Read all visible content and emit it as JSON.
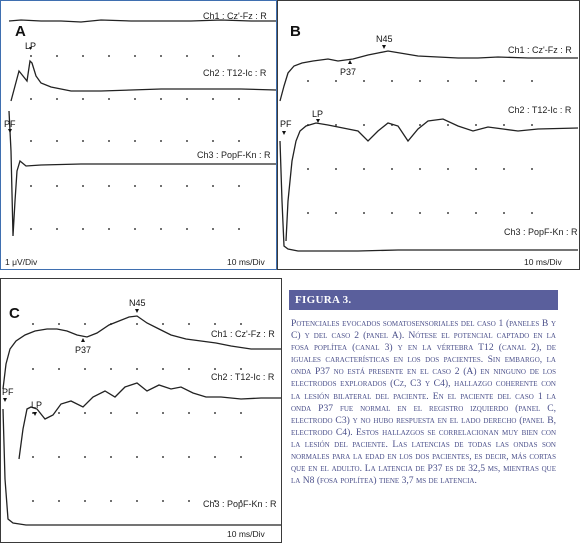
{
  "panels": {
    "A": {
      "label": "A",
      "ch1": "Ch1 : Cz'-Fz : R",
      "ch2": "Ch2 : T12-Ic : R",
      "ch3": "Ch3 : PopF-Kn : R",
      "marker_lp": "LP",
      "marker_pf": "PF",
      "scale_amp": "1 μV/Div",
      "scale_time": "10 ms/Div"
    },
    "B": {
      "label": "B",
      "ch1": "Ch1 : Cz'-Fz : R",
      "ch2": "Ch2 : T12-Ic : R",
      "ch3": "Ch3 : PopF-Kn : R",
      "marker_n45": "N45",
      "marker_p37": "P37",
      "marker_lp": "LP",
      "marker_pf": "PF",
      "scale_time": "10 ms/Div"
    },
    "C": {
      "label": "C",
      "ch1": "Ch1 : Cz'-Fz : R",
      "ch2": "Ch2 : T12-Ic : R",
      "ch3": "Ch3 : PopF-Kn : R",
      "marker_n45": "N45",
      "marker_p37": "P37",
      "marker_lp": "LP",
      "marker_pf": "PF",
      "scale_time": "10 ms/Div"
    }
  },
  "caption": {
    "title": "FIGURA 3.",
    "text": "Potenciales evocados somatosensoriales del caso 1 (paneles B y C) y del caso 2 (panel A). Nótese el potencial captado en la fosa poplítea (canal 3) y en la vértebra T12 (canal 2), de iguales características en los dos pacientes. Sin embargo, la onda P37 no está presente en el caso 2 (A) en ninguno de los electrodos explorados (Cz, C3 y C4), hallazgo coherente con la lesión bilateral del paciente. En el paciente del caso 1 la onda P37 fue normal en el registro izquierdo (panel C, electrodo C3) y no hubo respuesta en el lado derecho (panel B, electrodo C4). Estos hallazgos se correlacionan muy bien con la lesión del paciente. Las latencias de todas las ondas son normales para la edad en los dos pacientes, es decir, más cortas que en el adulto. La latencia de P37 es de 32,5 ms, mientras que la N8 (fosa poplítea) tiene 3,7 ms de latencia."
  }
}
